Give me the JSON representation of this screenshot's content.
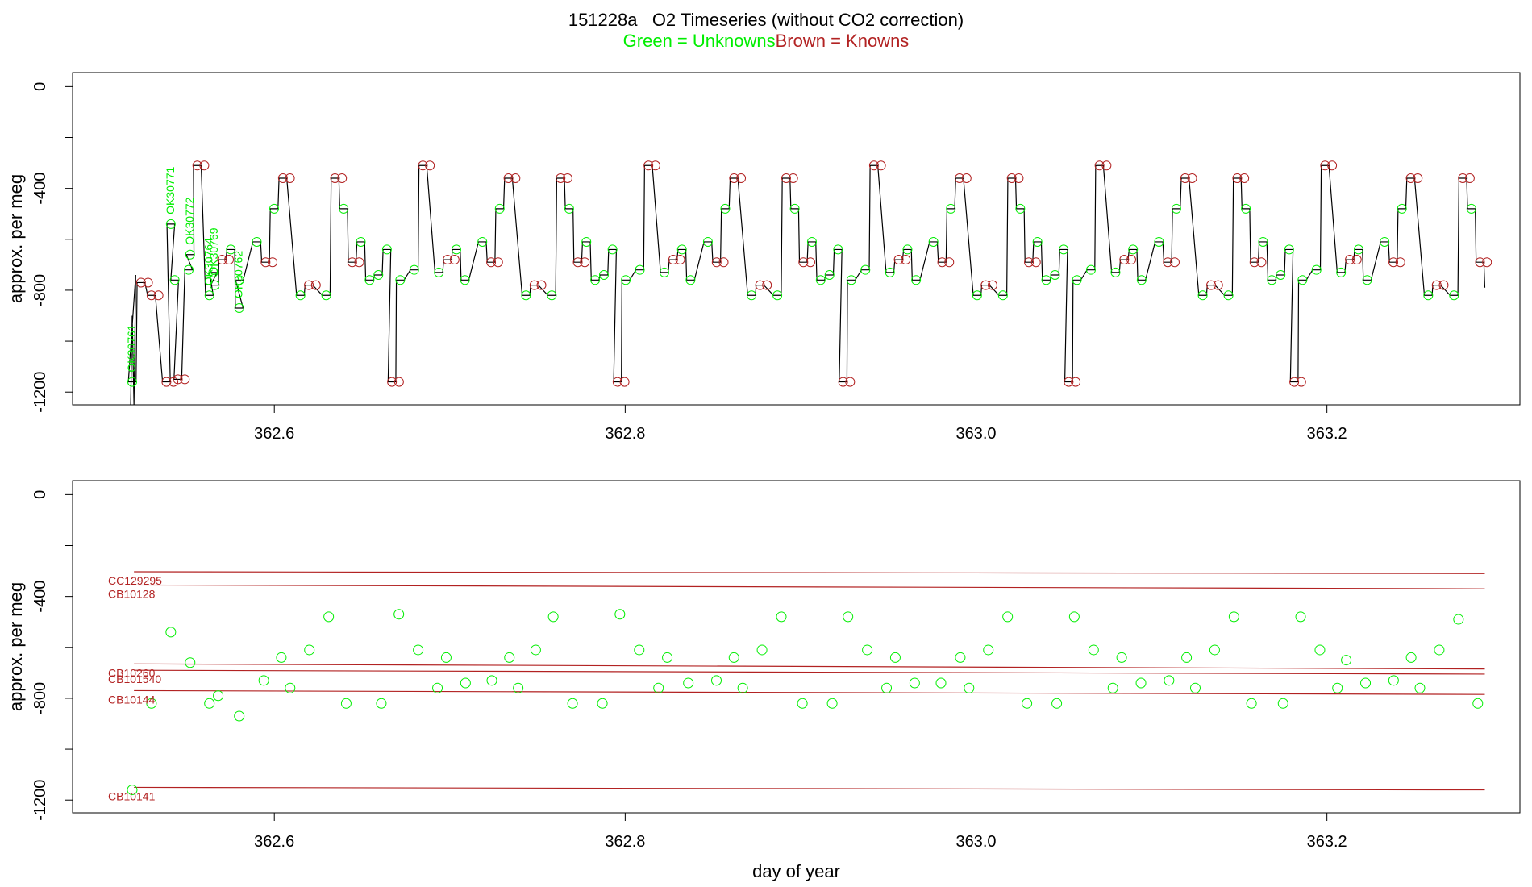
{
  "title": {
    "line1": "151228a   O2 Timeseries (without CO2 correction)",
    "unknowns_legend": "Green = Unknowns",
    "knowns_legend": "Brown = Knowns"
  },
  "colors": {
    "unknowns": "#00ee00",
    "knowns": "#b22222",
    "trace": "#000000",
    "axis": "#000000"
  },
  "chart_data": [
    {
      "type": "line",
      "panel": "top",
      "title": "",
      "xlabel": "",
      "ylabel": "approx. per meg",
      "xlim": [
        362.485,
        363.31
      ],
      "ylim": [
        -1250,
        55
      ],
      "xticks": [
        362.6,
        362.8,
        363.0,
        363.2
      ],
      "xtick_labels": [
        "362.6",
        "362.8",
        "363.0",
        "363.2"
      ],
      "yticks": [
        -1200,
        -800,
        -400,
        0
      ],
      "ytick_labels": [
        "-1200",
        "-800",
        "-400",
        "0"
      ],
      "grid": false,
      "legend": "none",
      "cycle_start": 362.5385,
      "cycle_period": 0.12857,
      "cycle_count": 6,
      "cycle_template": [
        {
          "dt": 0.0,
          "y": -1160,
          "kind": "known"
        },
        {
          "dt": 0.0047,
          "y": -760,
          "kind": "unknown"
        },
        {
          "dt": 0.0127,
          "y": -720,
          "kind": "unknown"
        },
        {
          "dt": 0.0176,
          "y": -310,
          "kind": "known"
        },
        {
          "dt": 0.0267,
          "y": -730,
          "kind": "unknown"
        },
        {
          "dt": 0.0317,
          "y": -680,
          "kind": "known"
        },
        {
          "dt": 0.0367,
          "y": -640,
          "kind": "unknown"
        },
        {
          "dt": 0.0416,
          "y": -760,
          "kind": "unknown"
        },
        {
          "dt": 0.0515,
          "y": -610,
          "kind": "unknown"
        },
        {
          "dt": 0.0565,
          "y": -690,
          "kind": "known"
        },
        {
          "dt": 0.0614,
          "y": -480,
          "kind": "unknown"
        },
        {
          "dt": 0.0664,
          "y": -360,
          "kind": "known"
        },
        {
          "dt": 0.0764,
          "y": -820,
          "kind": "unknown"
        },
        {
          "dt": 0.0812,
          "y": -780,
          "kind": "known"
        },
        {
          "dt": 0.0911,
          "y": -820,
          "kind": "unknown"
        },
        {
          "dt": 0.0961,
          "y": -360,
          "kind": "known"
        },
        {
          "dt": 0.101,
          "y": -480,
          "kind": "unknown"
        },
        {
          "dt": 0.1059,
          "y": -690,
          "kind": "known"
        },
        {
          "dt": 0.1108,
          "y": -610,
          "kind": "unknown"
        },
        {
          "dt": 0.1158,
          "y": -760,
          "kind": "unknown"
        },
        {
          "dt": 0.1208,
          "y": -740,
          "kind": "unknown"
        },
        {
          "dt": 0.1257,
          "y": -640,
          "kind": "unknown"
        }
      ],
      "early_unknowns": [
        {
          "x": 362.519,
          "y": -1160,
          "label": "OK30761"
        },
        {
          "x": 362.541,
          "y": -540,
          "label": "OK30771"
        },
        {
          "x": 362.552,
          "y": -660,
          "label": "OK30772"
        },
        {
          "x": 362.563,
          "y": -820,
          "label": "OK30764"
        },
        {
          "x": 362.566,
          "y": -780,
          "label": "OK30769"
        },
        {
          "x": 362.58,
          "y": -870,
          "label": "OK30762"
        }
      ],
      "early_knowns": [
        {
          "x": 362.524,
          "y": -770
        },
        {
          "x": 362.53,
          "y": -820
        },
        {
          "x": 362.545,
          "y": -1150
        }
      ]
    },
    {
      "type": "scatter",
      "panel": "bottom",
      "title": "",
      "xlabel": "day of year",
      "ylabel": "approx. per meg",
      "xlim": [
        362.485,
        363.31
      ],
      "ylim": [
        -1250,
        55
      ],
      "xticks": [
        362.6,
        362.8,
        363.0,
        363.2
      ],
      "xtick_labels": [
        "362.6",
        "362.8",
        "363.0",
        "363.2"
      ],
      "yticks": [
        -1200,
        -800,
        -400,
        0
      ],
      "ytick_labels": [
        "-1200",
        "-800",
        "-400",
        "0"
      ],
      "grid": false,
      "legend": "none",
      "reference_lines": [
        {
          "name": "CC129295",
          "y_start": -303,
          "y_end": -310
        },
        {
          "name": "CB10128",
          "y_start": -355,
          "y_end": -370
        },
        {
          "name": "CB10260",
          "y_start": -665,
          "y_end": -685
        },
        {
          "name": "CB101540",
          "y_start": -690,
          "y_end": -705
        },
        {
          "name": "CB10144",
          "y_start": -770,
          "y_end": -785
        },
        {
          "name": "CB10141",
          "y_start": -1150,
          "y_end": -1160
        }
      ],
      "reference_x_range": [
        362.52,
        363.29
      ],
      "unknowns": [
        {
          "x": 362.519,
          "y": -1160
        },
        {
          "x": 362.53,
          "y": -820
        },
        {
          "x": 362.541,
          "y": -540
        },
        {
          "x": 362.552,
          "y": -660
        },
        {
          "x": 362.563,
          "y": -820
        },
        {
          "x": 362.568,
          "y": -790
        },
        {
          "x": 362.58,
          "y": -870
        },
        {
          "x": 362.594,
          "y": -730
        },
        {
          "x": 362.604,
          "y": -640
        },
        {
          "x": 362.609,
          "y": -760
        },
        {
          "x": 362.62,
          "y": -610
        },
        {
          "x": 362.631,
          "y": -480
        },
        {
          "x": 362.641,
          "y": -820
        },
        {
          "x": 362.661,
          "y": -820
        },
        {
          "x": 362.671,
          "y": -470
        },
        {
          "x": 362.682,
          "y": -610
        },
        {
          "x": 362.693,
          "y": -760
        },
        {
          "x": 362.698,
          "y": -640
        },
        {
          "x": 362.709,
          "y": -740
        },
        {
          "x": 362.724,
          "y": -730
        },
        {
          "x": 362.734,
          "y": -640
        },
        {
          "x": 362.739,
          "y": -760
        },
        {
          "x": 362.749,
          "y": -610
        },
        {
          "x": 362.759,
          "y": -480
        },
        {
          "x": 362.77,
          "y": -820
        },
        {
          "x": 362.787,
          "y": -820
        },
        {
          "x": 362.797,
          "y": -470
        },
        {
          "x": 362.808,
          "y": -610
        },
        {
          "x": 362.819,
          "y": -760
        },
        {
          "x": 362.824,
          "y": -640
        },
        {
          "x": 362.836,
          "y": -740
        },
        {
          "x": 362.852,
          "y": -730
        },
        {
          "x": 362.862,
          "y": -640
        },
        {
          "x": 362.867,
          "y": -760
        },
        {
          "x": 362.878,
          "y": -610
        },
        {
          "x": 362.889,
          "y": -480
        },
        {
          "x": 362.901,
          "y": -820
        },
        {
          "x": 362.918,
          "y": -820
        },
        {
          "x": 362.927,
          "y": -480
        },
        {
          "x": 362.938,
          "y": -610
        },
        {
          "x": 362.949,
          "y": -760
        },
        {
          "x": 362.954,
          "y": -640
        },
        {
          "x": 362.965,
          "y": -740
        },
        {
          "x": 362.98,
          "y": -740
        },
        {
          "x": 362.991,
          "y": -640
        },
        {
          "x": 362.996,
          "y": -760
        },
        {
          "x": 363.007,
          "y": -610
        },
        {
          "x": 363.018,
          "y": -480
        },
        {
          "x": 363.029,
          "y": -820
        },
        {
          "x": 363.046,
          "y": -820
        },
        {
          "x": 363.056,
          "y": -480
        },
        {
          "x": 363.067,
          "y": -610
        },
        {
          "x": 363.078,
          "y": -760
        },
        {
          "x": 363.083,
          "y": -640
        },
        {
          "x": 363.094,
          "y": -740
        },
        {
          "x": 363.11,
          "y": -730
        },
        {
          "x": 363.12,
          "y": -640
        },
        {
          "x": 363.125,
          "y": -760
        },
        {
          "x": 363.136,
          "y": -610
        },
        {
          "x": 363.147,
          "y": -480
        },
        {
          "x": 363.157,
          "y": -820
        },
        {
          "x": 363.175,
          "y": -820
        },
        {
          "x": 363.185,
          "y": -480
        },
        {
          "x": 363.196,
          "y": -610
        },
        {
          "x": 363.206,
          "y": -760
        },
        {
          "x": 363.211,
          "y": -650
        },
        {
          "x": 363.222,
          "y": -740
        },
        {
          "x": 363.238,
          "y": -730
        },
        {
          "x": 363.248,
          "y": -640
        },
        {
          "x": 363.253,
          "y": -760
        },
        {
          "x": 363.264,
          "y": -610
        },
        {
          "x": 363.275,
          "y": -490
        },
        {
          "x": 363.286,
          "y": -820
        }
      ]
    }
  ]
}
